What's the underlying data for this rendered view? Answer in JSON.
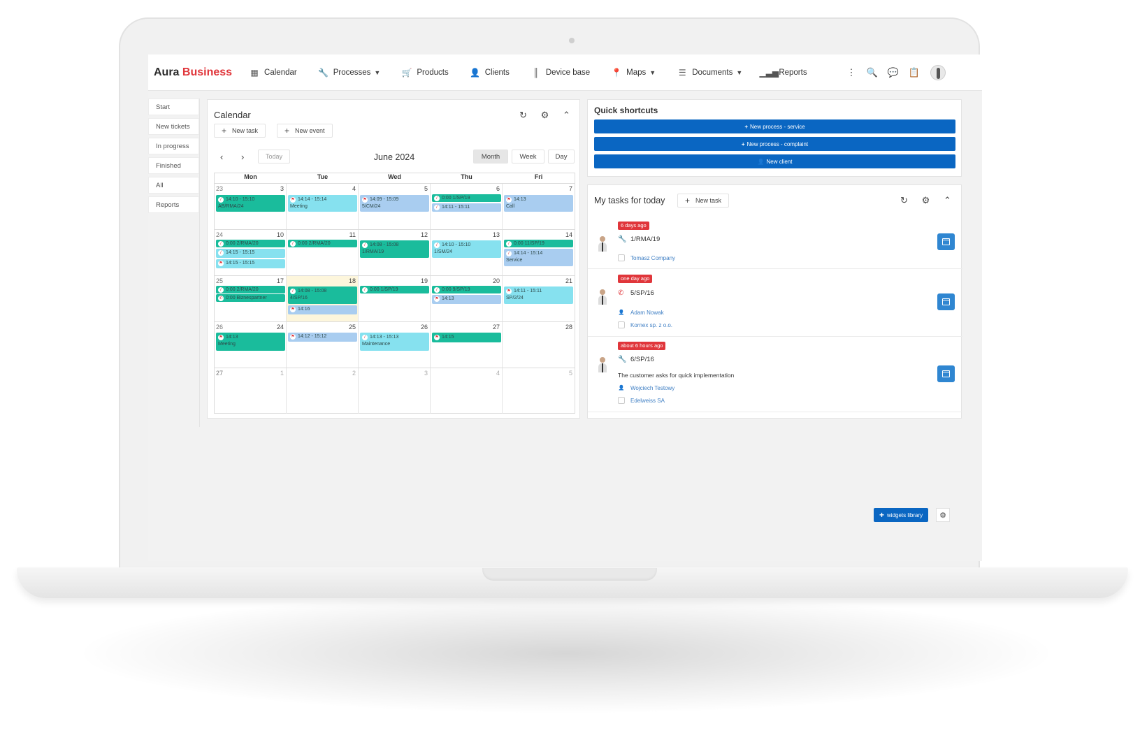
{
  "header": {
    "logo_part1": "Aura",
    "logo_part2": "Business",
    "nav": [
      {
        "label": "Calendar",
        "icon": "calendar-icon",
        "dropdown": false
      },
      {
        "label": "Processes",
        "icon": "wrench-icon",
        "dropdown": true
      },
      {
        "label": "Products",
        "icon": "cart-icon",
        "dropdown": false
      },
      {
        "label": "Clients",
        "icon": "user-icon",
        "dropdown": false
      },
      {
        "label": "Device base",
        "icon": "barcode-icon",
        "dropdown": false
      },
      {
        "label": "Maps",
        "icon": "map-pin-icon",
        "dropdown": true
      },
      {
        "label": "Documents",
        "icon": "list-icon",
        "dropdown": true
      },
      {
        "label": "Reports",
        "icon": "bar-chart-icon",
        "dropdown": false
      }
    ]
  },
  "sidemenu": [
    "Start",
    "New tickets",
    "In progress",
    "Finished",
    "All",
    "Reports"
  ],
  "calendar": {
    "title": "Calendar",
    "new_task": "New task",
    "new_event": "New event",
    "today": "Today",
    "month_title": "June 2024",
    "views": [
      "Month",
      "Week",
      "Day"
    ],
    "days": [
      "Mon",
      "Tue",
      "Wed",
      "Thu",
      "Fri"
    ],
    "weeks": [
      {
        "num": "23",
        "days": [
          "3",
          "4",
          "5",
          "6",
          "7"
        ]
      },
      {
        "num": "24",
        "days": [
          "10",
          "11",
          "12",
          "13",
          "14"
        ]
      },
      {
        "num": "25",
        "days": [
          "17",
          "18",
          "19",
          "20",
          "21"
        ]
      },
      {
        "num": "26",
        "days": [
          "24",
          "25",
          "26",
          "27",
          "28"
        ]
      },
      {
        "num": "27",
        "days": [
          "1",
          "2",
          "3",
          "4",
          "5"
        ]
      }
    ],
    "events": {
      "w0d0": [
        "14:10 - 15:10",
        "AB/RMA/24"
      ],
      "w0d1": [
        "14:14 - 15:14",
        "Meeting"
      ],
      "w0d2": [
        "14:09 - 15:09",
        "5/CM/24"
      ],
      "w0d3a": "0:00 1/SP/19",
      "w0d3b": "14:11 - 15:11",
      "w0d4": [
        "14:13",
        "Call"
      ],
      "w1d0a": "0:00 2/RMA/20",
      "w1d0b": "14:15 - 15:15",
      "w1d0c": "14:15 - 15:15",
      "w1d1": "0:00 2/RMA/20",
      "w1d2": [
        "14:08 - 15:08",
        "1/RMA/19"
      ],
      "w1d3": [
        "14:10 - 15:10",
        "1/SM/24"
      ],
      "w1d4a": "0:00 11/SP/19",
      "w1d4b": [
        "14:14 - 15:14",
        "Service"
      ],
      "w2d0a": "0:00 2/RMA/20",
      "w2d0b": "0:00 Biznespartner",
      "w2d1a": [
        "14:08 - 15:08",
        "4/SP/16"
      ],
      "w2d1b": "14:16",
      "w2d2": "0:00 1/SP/19",
      "w2d3a": "0:00 9/SP/19",
      "w2d3b": "14:13",
      "w2d4": [
        "14:11 - 15:11",
        "SP/2/24"
      ],
      "w3d0": [
        "14:13",
        "Meeting"
      ],
      "w3d1": "14:12 - 15:12",
      "w3d2": [
        "14:13 - 15:13",
        "Maintenance"
      ],
      "w3d3": "14:15"
    }
  },
  "quick_shortcuts": {
    "title": "Quick shortcuts",
    "buttons": [
      "New process - service",
      "New process - complaint",
      "New client"
    ]
  },
  "tasks": {
    "title": "My tasks for today",
    "new_task": "New task",
    "items": [
      {
        "badge": "6 days ago",
        "id": "1/RMA/19",
        "company": "Tomasz Company"
      },
      {
        "badge": "one day ago",
        "id": "5/SP/16",
        "person": "Adam Nowak",
        "company": "Kornex sp. z o.o."
      },
      {
        "badge": "about 6 hours ago",
        "id": "6/SP/16",
        "desc": "The customer asks for quick implementation",
        "person": "Wojciech Testowy",
        "company": "Edelweiss SA"
      }
    ]
  },
  "widgets_library": "widgets library",
  "colors": {
    "brand_red": "#e0363b",
    "primary_blue": "#0a66c2",
    "event_green": "#1abc9c",
    "event_cyan": "#86e1ef",
    "event_blue": "#a9cdf0"
  }
}
